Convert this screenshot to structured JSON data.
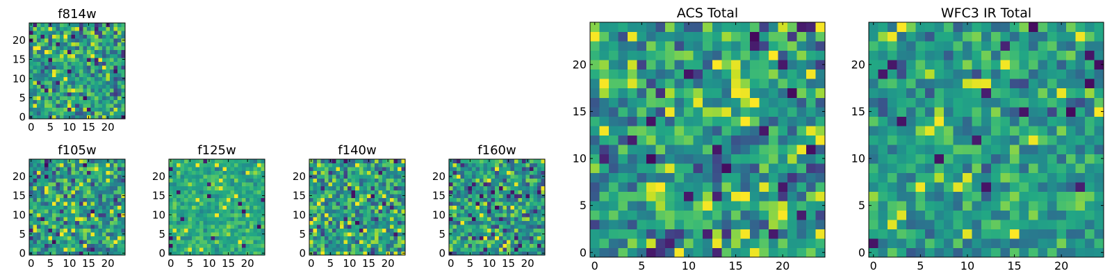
{
  "chart_data": [
    {
      "id": "f814w",
      "type": "heatmap",
      "title": "f814w",
      "rows": 25,
      "cols": 25,
      "x_ticks": [
        0,
        5,
        10,
        15,
        20
      ],
      "y_ticks": [
        0,
        5,
        10,
        15,
        20
      ],
      "xlim": [
        -0.5,
        24.5
      ],
      "ylim": [
        -0.5,
        24.5
      ],
      "colormap": "viridis",
      "value_range": [
        0,
        1
      ],
      "seed": 11,
      "character": "fine noise"
    },
    {
      "id": "f105w",
      "type": "heatmap",
      "title": "f105w",
      "rows": 25,
      "cols": 25,
      "x_ticks": [
        0,
        5,
        10,
        15,
        20
      ],
      "y_ticks": [
        0,
        5,
        10,
        15,
        20
      ],
      "xlim": [
        -0.5,
        24.5
      ],
      "ylim": [
        -0.5,
        24.5
      ],
      "colormap": "viridis",
      "value_range": [
        0,
        1
      ],
      "seed": 23,
      "character": "blocky noise"
    },
    {
      "id": "f125w",
      "type": "heatmap",
      "title": "f125w",
      "rows": 25,
      "cols": 25,
      "x_ticks": [
        0,
        5,
        10,
        15,
        20
      ],
      "y_ticks": [
        0,
        5,
        10,
        15,
        20
      ],
      "xlim": [
        -0.5,
        24.5
      ],
      "ylim": [
        -0.5,
        24.5
      ],
      "colormap": "viridis",
      "value_range": [
        0,
        1
      ],
      "seed": 37,
      "character": "mostly yellow-green"
    },
    {
      "id": "f140w",
      "type": "heatmap",
      "title": "f140w",
      "rows": 25,
      "cols": 25,
      "x_ticks": [
        0,
        5,
        10,
        15,
        20
      ],
      "y_ticks": [
        0,
        5,
        10,
        15,
        20
      ],
      "xlim": [
        -0.5,
        24.5
      ],
      "ylim": [
        -0.5,
        24.5
      ],
      "colormap": "viridis",
      "value_range": [
        0,
        1
      ],
      "seed": 41,
      "character": "blocky noise"
    },
    {
      "id": "f160w",
      "type": "heatmap",
      "title": "f160w",
      "rows": 25,
      "cols": 25,
      "x_ticks": [
        0,
        5,
        10,
        15,
        20
      ],
      "y_ticks": [
        0,
        5,
        10,
        15,
        20
      ],
      "xlim": [
        -0.5,
        24.5
      ],
      "ylim": [
        -0.5,
        24.5
      ],
      "colormap": "viridis",
      "value_range": [
        0,
        1
      ],
      "seed": 53,
      "character": "blocky noise"
    },
    {
      "id": "acs_total",
      "type": "heatmap",
      "title": "ACS Total",
      "rows": 25,
      "cols": 25,
      "x_ticks": [
        0,
        5,
        10,
        15,
        20
      ],
      "y_ticks": [
        0,
        5,
        10,
        15,
        20
      ],
      "xlim": [
        -0.5,
        24.5
      ],
      "ylim": [
        -0.5,
        24.5
      ],
      "colormap": "viridis",
      "value_range": [
        0,
        1
      ],
      "seed": 67,
      "character": "fine noise"
    },
    {
      "id": "wfc3_ir_total",
      "type": "heatmap",
      "title": "WFC3 IR Total",
      "rows": 25,
      "cols": 25,
      "x_ticks": [
        0,
        5,
        10,
        15,
        20
      ],
      "y_ticks": [
        0,
        5,
        10,
        15,
        20
      ],
      "xlim": [
        -0.5,
        24.5
      ],
      "ylim": [
        -0.5,
        24.5
      ],
      "colormap": "viridis",
      "value_range": [
        0,
        1
      ],
      "seed": 79,
      "character": "mostly green"
    }
  ]
}
